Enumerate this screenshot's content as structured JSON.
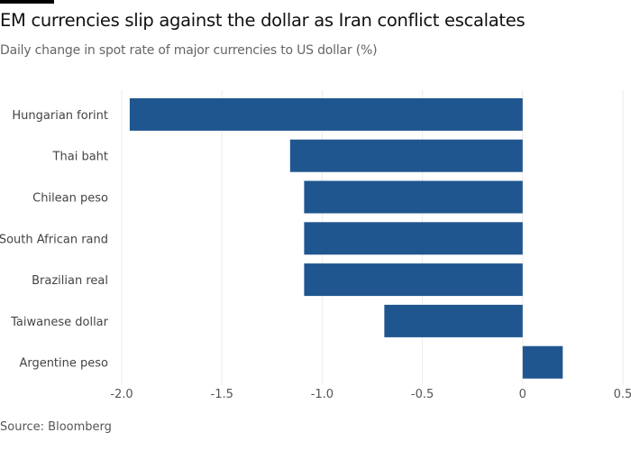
{
  "chart_data": {
    "type": "bar",
    "orientation": "horizontal",
    "title": "EM currencies slip against the dollar as Iran conflict escalates",
    "subtitle": "Daily change in spot rate of major currencies to US dollar (%)",
    "categories": [
      "Hungarian forint",
      "Thai baht",
      "Chilean peso",
      "South African rand",
      "Brazilian real",
      "Taiwanese dollar",
      "Argentine peso"
    ],
    "values": [
      -1.96,
      -1.16,
      -1.09,
      -1.09,
      -1.09,
      -0.69,
      0.2
    ],
    "xlim": [
      -2.0,
      0.5
    ],
    "xticks": [
      -2.0,
      -1.5,
      -1.0,
      -0.5,
      0,
      0.5
    ],
    "xtick_labels": [
      "-2.0",
      "-1.5",
      "-1.0",
      "-0.5",
      "0",
      "0.5"
    ],
    "xlabel": "",
    "ylabel": "",
    "grid": true,
    "bar_color": "#1f568f",
    "source": "Source: Bloomberg"
  }
}
